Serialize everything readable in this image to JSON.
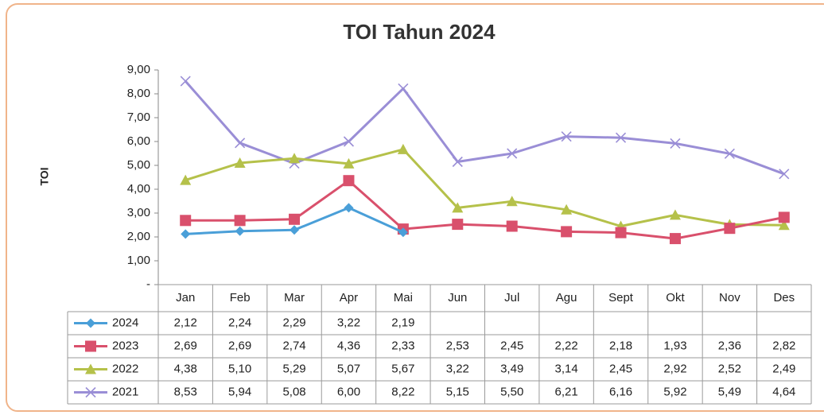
{
  "chart_data": {
    "type": "line",
    "title": "TOI Tahun 2024",
    "y_label": "TOI",
    "categories": [
      "Jan",
      "Feb",
      "Mar",
      "Apr",
      "Mai",
      "Jun",
      "Jul",
      "Agu",
      "Sept",
      "Okt",
      "Nov",
      "Des"
    ],
    "series": [
      {
        "name": "2024",
        "color": "#4a9fd8",
        "marker": "diamond",
        "values": [
          2.12,
          2.24,
          2.29,
          3.22,
          2.19,
          null,
          null,
          null,
          null,
          null,
          null,
          null
        ],
        "value_labels": [
          "2,12",
          "2,24",
          "2,29",
          "3,22",
          "2,19",
          null,
          null,
          null,
          null,
          null,
          null,
          null
        ]
      },
      {
        "name": "2023",
        "color": "#d9506c",
        "marker": "square",
        "values": [
          2.69,
          2.69,
          2.74,
          4.36,
          2.33,
          2.53,
          2.45,
          2.22,
          2.18,
          1.93,
          2.36,
          2.82
        ],
        "value_labels": [
          "2,69",
          "2,69",
          "2,74",
          "4,36",
          "2,33",
          "2,53",
          "2,45",
          "2,22",
          "2,18",
          "1,93",
          "2,36",
          "2,82"
        ]
      },
      {
        "name": "2022",
        "color": "#b5c14a",
        "marker": "triangle",
        "values": [
          4.38,
          5.1,
          5.29,
          5.07,
          5.67,
          3.22,
          3.49,
          3.14,
          2.45,
          2.92,
          2.52,
          2.49
        ],
        "value_labels": [
          "4,38",
          "5,10",
          "5,29",
          "5,07",
          "5,67",
          "3,22",
          "3,49",
          "3,14",
          "2,45",
          "2,92",
          "2,52",
          "2,49"
        ]
      },
      {
        "name": "2021",
        "color": "#9a8ed6",
        "marker": "x",
        "values": [
          8.53,
          5.94,
          5.08,
          6.0,
          8.22,
          5.15,
          5.5,
          6.21,
          6.16,
          5.92,
          5.49,
          4.64
        ],
        "value_labels": [
          "8,53",
          "5,94",
          "5,08",
          "6,00",
          "8,22",
          "5,15",
          "5,50",
          "6,21",
          "6,16",
          "5,92",
          "5,49",
          "4,64"
        ]
      }
    ],
    "ylim": [
      0,
      9
    ],
    "yticks": [
      {
        "value": 0,
        "label": "-"
      },
      {
        "value": 1,
        "label": "1,00"
      },
      {
        "value": 2,
        "label": "2,00"
      },
      {
        "value": 3,
        "label": "3,00"
      },
      {
        "value": 4,
        "label": "4,00"
      },
      {
        "value": 5,
        "label": "5,00"
      },
      {
        "value": 6,
        "label": "6,00"
      },
      {
        "value": 7,
        "label": "7,00"
      },
      {
        "value": 8,
        "label": "8,00"
      },
      {
        "value": 9,
        "label": "9,00"
      }
    ],
    "grid": false
  }
}
